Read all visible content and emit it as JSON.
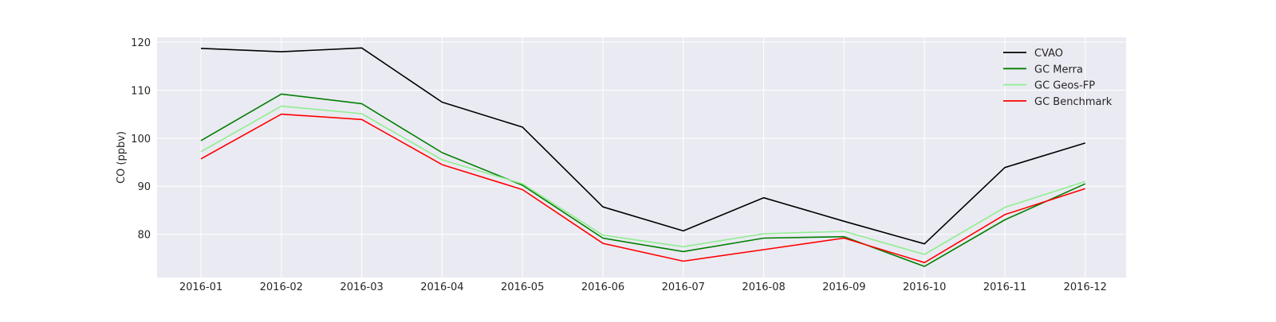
{
  "chart_data": {
    "type": "line",
    "title": "",
    "xlabel": "",
    "ylabel": "CO (ppbv)",
    "categories": [
      "2016-01",
      "2016-02",
      "2016-03",
      "2016-04",
      "2016-05",
      "2016-06",
      "2016-07",
      "2016-08",
      "2016-09",
      "2016-10",
      "2016-11",
      "2016-12"
    ],
    "ylim": [
      71,
      121
    ],
    "yticks": [
      80,
      90,
      100,
      110,
      120
    ],
    "grid": true,
    "legend_position": "top-right",
    "colors": {
      "background": "#eaeaf2",
      "grid": "#ffffff"
    },
    "series": [
      {
        "name": "CVAO",
        "color": "#000000",
        "values": [
          118.7,
          118.0,
          118.8,
          107.5,
          102.3,
          85.7,
          80.7,
          87.6,
          82.7,
          78.0,
          93.9,
          99.0
        ]
      },
      {
        "name": "GC Merra",
        "color": "#008000",
        "values": [
          99.5,
          109.2,
          107.2,
          97.0,
          90.2,
          79.2,
          76.4,
          79.2,
          79.5,
          73.3,
          83.0,
          90.5
        ]
      },
      {
        "name": "GC Geos-FP",
        "color": "#90ee90",
        "values": [
          97.2,
          106.7,
          105.1,
          95.5,
          90.5,
          79.8,
          77.4,
          80.1,
          80.6,
          75.8,
          85.6,
          91.0
        ]
      },
      {
        "name": "GC Benchmark",
        "color": "#ff0000",
        "values": [
          95.7,
          105.0,
          103.9,
          94.5,
          89.3,
          78.1,
          74.4,
          76.8,
          79.2,
          74.1,
          84.1,
          89.5
        ]
      }
    ]
  }
}
